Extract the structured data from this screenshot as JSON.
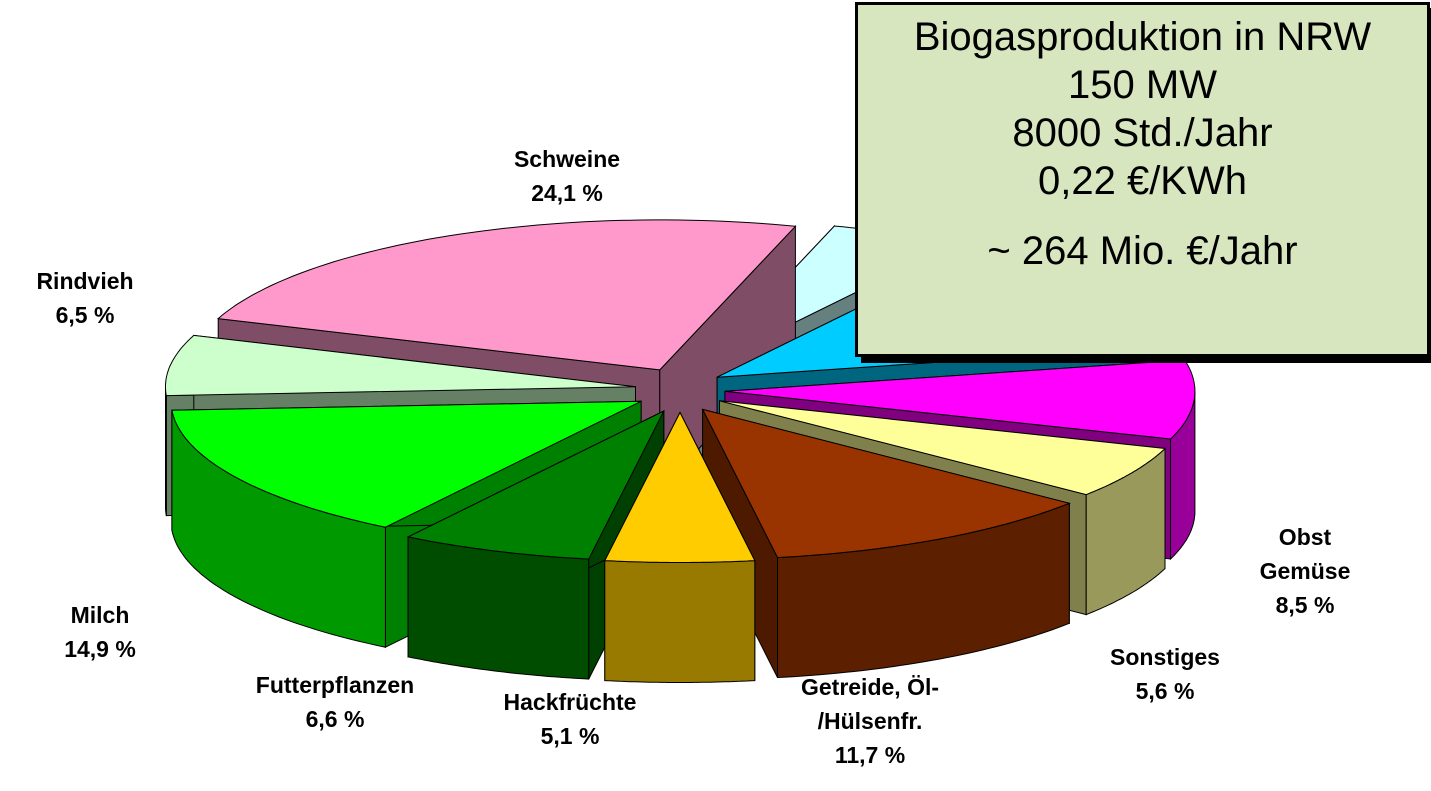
{
  "chart_data": {
    "type": "pie3d",
    "categories": [
      "Schweine",
      null,
      null,
      "Obst\nGemüse",
      "Sonstiges",
      "Getreide, Öl-\n/Hülsenfr.",
      "Hackfrüchte",
      "Futterpflanzen",
      "Milch",
      "Rindvieh"
    ],
    "values": [
      24.1,
      4.5,
      12.5,
      8.5,
      5.6,
      11.7,
      5.1,
      6.6,
      14.9,
      6.5
    ],
    "value_labels": [
      "24,1 %",
      null,
      null,
      "8,5 %",
      "5,6 %",
      "11,7 %",
      "5,1 %",
      "6,6 %",
      "14,9 %",
      "6,5 %"
    ],
    "colors": [
      "#ff99cc",
      "#ccffff",
      "#00ccff",
      "#ff00ff",
      "#ffff99",
      "#993300",
      "#ffcc00",
      "#008000",
      "#00ff00",
      "#ccffcc"
    ]
  },
  "info_box": {
    "lines": [
      "Biogasproduktion in NRW",
      "150 MW",
      "8000 Std./Jahr",
      "0,22 €/KWh",
      "~ 264 Mio. €/Jahr"
    ]
  }
}
